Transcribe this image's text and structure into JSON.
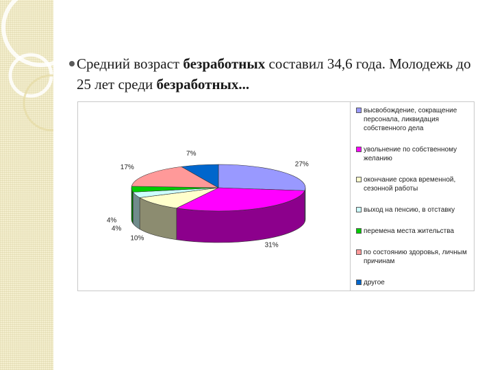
{
  "slide": {
    "text_parts": [
      {
        "text": "Средний возраст ",
        "bold": false
      },
      {
        "text": "безработных",
        "bold": true
      },
      {
        "text": " составил 34,6 года. Молодежь до 25 лет среди ",
        "bold": false
      },
      {
        "text": "безработных...",
        "bold": true
      }
    ]
  },
  "chart_data": {
    "type": "pie",
    "three_d": true,
    "legend_position": "right",
    "slices": [
      {
        "label": "высвобождение, сокращение персонала, ликвидация собственного дела",
        "value": 27,
        "value_label": "27%",
        "color": "#9999ff"
      },
      {
        "label": "увольнение по собственному желанию",
        "value": 31,
        "value_label": "31%",
        "color": "#ff00ff"
      },
      {
        "label": "окончание срока временной, сезонной работы",
        "value": 10,
        "value_label": "10%",
        "color": "#ffffcc"
      },
      {
        "label": "выход на пенсию, в отставку",
        "value": 4,
        "value_label": "4%",
        "color": "#ccffff"
      },
      {
        "label": "перемена места жительства",
        "value": 4,
        "value_label": "4%",
        "color": "#00cc00"
      },
      {
        "label": "по состоянию здоровья, личным причинам",
        "value": 17,
        "value_label": "17%",
        "color": "#ff9999"
      },
      {
        "label": "другое",
        "value": 7,
        "value_label": "7%",
        "color": "#0066cc"
      }
    ]
  }
}
